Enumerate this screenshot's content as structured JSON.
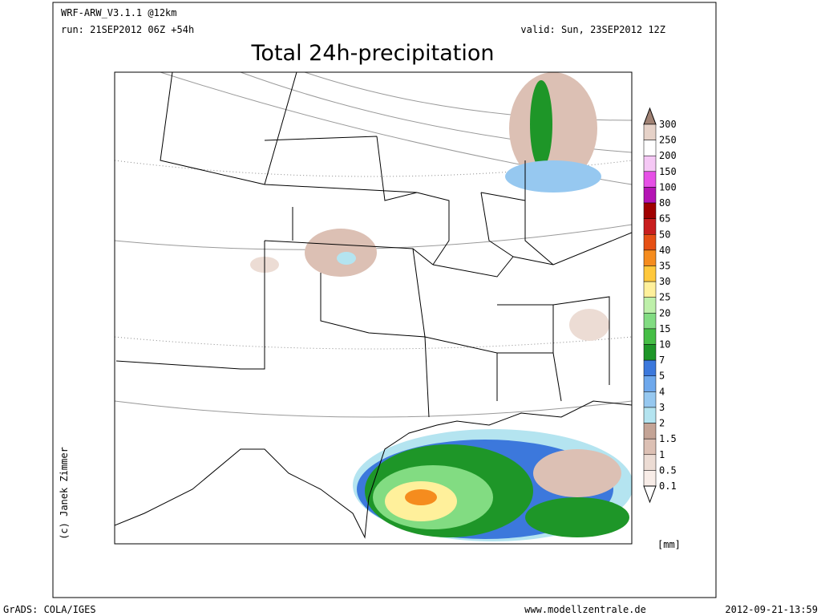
{
  "header": {
    "model": "WRF-ARW_V3.1.1 @12km",
    "run": "run: 21SEP2012 06Z +54h",
    "valid": "valid: Sun, 23SEP2012 12Z",
    "title": "Total 24h-precipitation"
  },
  "credit": "(c) Janek Zimmer",
  "legend": {
    "labels": [
      300,
      250,
      200,
      150,
      100,
      80,
      65,
      50,
      40,
      35,
      30,
      25,
      20,
      15,
      10,
      7,
      5,
      4,
      3,
      2,
      1.5,
      1,
      0.5,
      0.1
    ],
    "colors": [
      "#a08274",
      "#e6d2c8",
      "#ffffff",
      "#f5c8f5",
      "#e650e6",
      "#b414b4",
      "#a00000",
      "#c81e1e",
      "#e65014",
      "#f58c1e",
      "#ffc83c",
      "#fff09b",
      "#bef0aa",
      "#82dc82",
      "#46be46",
      "#1e9628",
      "#3c78dc",
      "#6ea8ec",
      "#96c8f0",
      "#b4e4f0",
      "#c4a496",
      "#dcc0b4",
      "#ecdcd4",
      "#f8ede8",
      "#ffffff"
    ],
    "unit": "[mm]"
  },
  "footer": {
    "left": "GrADS: COLA/IGES",
    "center": "www.modellzentrale.de",
    "right": "2012-09-21-13:59"
  }
}
